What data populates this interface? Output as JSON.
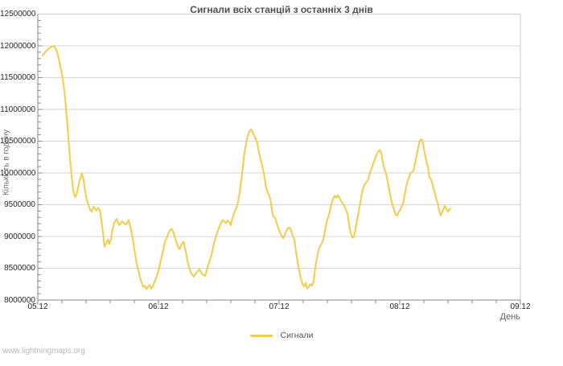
{
  "page": {
    "watermark": "www.lightningmaps.org"
  },
  "colors": {
    "series_line": "#f3cd4a",
    "gridline": "#d6d6d6",
    "plot_border": "#c9c9c9",
    "axis_line": "#8a8a8a",
    "title_text": "#4f4f4f",
    "tick_text": "#262626",
    "legend_text": "#545454",
    "watermark_text": "#b8b8b8"
  },
  "chart_data": {
    "type": "line",
    "title": "Сигнали всіх станцій з останніх 3 днів",
    "xlabel": "День",
    "ylabel": "Кількість в годину",
    "grid": "horizontal-gridlines-only",
    "legend": {
      "position": "bottom-center",
      "entries": [
        {
          "label": "Сигнали",
          "color": "#f3cd4a"
        }
      ]
    },
    "x_axis": {
      "range_days": [
        0,
        4
      ],
      "major_tick_labels": [
        "05.12",
        "06.12",
        "07.12",
        "08.12",
        "09.12"
      ],
      "minor_step_days": 0.2
    },
    "y_axis": {
      "range": [
        8000000,
        12500000
      ],
      "major_step": 500000,
      "minor_step": 100000,
      "tick_labels": [
        "8000000",
        "8500000",
        "9000000",
        "9500000",
        "10000000",
        "10500000",
        "11000000",
        "11500000",
        "12000000",
        "12500000"
      ]
    },
    "series": [
      {
        "name": "Сигнали",
        "color": "#f3cd4a",
        "points": [
          [
            0.04,
            11850000
          ],
          [
            0.06,
            11900000
          ],
          [
            0.08,
            11940000
          ],
          [
            0.1,
            11970000
          ],
          [
            0.12,
            11990000
          ],
          [
            0.133,
            12000000
          ],
          [
            0.147,
            11960000
          ],
          [
            0.16,
            11900000
          ],
          [
            0.173,
            11800000
          ],
          [
            0.193,
            11620000
          ],
          [
            0.213,
            11400000
          ],
          [
            0.227,
            11150000
          ],
          [
            0.24,
            10880000
          ],
          [
            0.253,
            10550000
          ],
          [
            0.267,
            10220000
          ],
          [
            0.28,
            9950000
          ],
          [
            0.293,
            9740000
          ],
          [
            0.307,
            9620000
          ],
          [
            0.32,
            9660000
          ],
          [
            0.333,
            9760000
          ],
          [
            0.347,
            9880000
          ],
          [
            0.36,
            9960000
          ],
          [
            0.367,
            9990000
          ],
          [
            0.38,
            9880000
          ],
          [
            0.393,
            9700000
          ],
          [
            0.407,
            9570000
          ],
          [
            0.42,
            9500000
          ],
          [
            0.433,
            9420000
          ],
          [
            0.447,
            9390000
          ],
          [
            0.46,
            9470000
          ],
          [
            0.473,
            9440000
          ],
          [
            0.487,
            9410000
          ],
          [
            0.5,
            9450000
          ],
          [
            0.513,
            9420000
          ],
          [
            0.527,
            9260000
          ],
          [
            0.54,
            9060000
          ],
          [
            0.553,
            8840000
          ],
          [
            0.567,
            8900000
          ],
          [
            0.58,
            8950000
          ],
          [
            0.593,
            8880000
          ],
          [
            0.607,
            8970000
          ],
          [
            0.62,
            9120000
          ],
          [
            0.633,
            9210000
          ],
          [
            0.653,
            9280000
          ],
          [
            0.673,
            9180000
          ],
          [
            0.687,
            9210000
          ],
          [
            0.7,
            9240000
          ],
          [
            0.72,
            9200000
          ],
          [
            0.733,
            9190000
          ],
          [
            0.753,
            9260000
          ],
          [
            0.773,
            9110000
          ],
          [
            0.787,
            8960000
          ],
          [
            0.807,
            8710000
          ],
          [
            0.82,
            8570000
          ],
          [
            0.84,
            8410000
          ],
          [
            0.853,
            8320000
          ],
          [
            0.873,
            8210000
          ],
          [
            0.887,
            8220000
          ],
          [
            0.9,
            8170000
          ],
          [
            0.913,
            8210000
          ],
          [
            0.927,
            8240000
          ],
          [
            0.94,
            8180000
          ],
          [
            0.953,
            8210000
          ],
          [
            0.973,
            8310000
          ],
          [
            0.987,
            8380000
          ],
          [
            1.007,
            8510000
          ],
          [
            1.02,
            8630000
          ],
          [
            1.04,
            8790000
          ],
          [
            1.053,
            8910000
          ],
          [
            1.073,
            9000000
          ],
          [
            1.093,
            9090000
          ],
          [
            1.107,
            9120000
          ],
          [
            1.12,
            9090000
          ],
          [
            1.14,
            8960000
          ],
          [
            1.16,
            8850000
          ],
          [
            1.173,
            8800000
          ],
          [
            1.193,
            8880000
          ],
          [
            1.207,
            8920000
          ],
          [
            1.227,
            8760000
          ],
          [
            1.24,
            8620000
          ],
          [
            1.253,
            8520000
          ],
          [
            1.267,
            8440000
          ],
          [
            1.28,
            8400000
          ],
          [
            1.293,
            8370000
          ],
          [
            1.307,
            8410000
          ],
          [
            1.327,
            8460000
          ],
          [
            1.34,
            8480000
          ],
          [
            1.353,
            8440000
          ],
          [
            1.367,
            8400000
          ],
          [
            1.387,
            8380000
          ],
          [
            1.407,
            8520000
          ],
          [
            1.427,
            8640000
          ],
          [
            1.44,
            8710000
          ],
          [
            1.46,
            8890000
          ],
          [
            1.48,
            9020000
          ],
          [
            1.5,
            9130000
          ],
          [
            1.52,
            9220000
          ],
          [
            1.533,
            9260000
          ],
          [
            1.547,
            9230000
          ],
          [
            1.56,
            9210000
          ],
          [
            1.573,
            9250000
          ],
          [
            1.587,
            9230000
          ],
          [
            1.6,
            9180000
          ],
          [
            1.613,
            9280000
          ],
          [
            1.627,
            9370000
          ],
          [
            1.647,
            9460000
          ],
          [
            1.66,
            9550000
          ],
          [
            1.673,
            9700000
          ],
          [
            1.687,
            9900000
          ],
          [
            1.7,
            10100000
          ],
          [
            1.713,
            10320000
          ],
          [
            1.727,
            10470000
          ],
          [
            1.74,
            10580000
          ],
          [
            1.753,
            10650000
          ],
          [
            1.767,
            10690000
          ],
          [
            1.78,
            10650000
          ],
          [
            1.793,
            10590000
          ],
          [
            1.807,
            10530000
          ],
          [
            1.82,
            10460000
          ],
          [
            1.833,
            10330000
          ],
          [
            1.847,
            10210000
          ],
          [
            1.86,
            10110000
          ],
          [
            1.873,
            10000000
          ],
          [
            1.887,
            9830000
          ],
          [
            1.9,
            9710000
          ],
          [
            1.913,
            9670000
          ],
          [
            1.927,
            9590000
          ],
          [
            1.94,
            9430000
          ],
          [
            1.953,
            9310000
          ],
          [
            1.967,
            9290000
          ],
          [
            1.98,
            9210000
          ],
          [
            1.993,
            9130000
          ],
          [
            2.007,
            9070000
          ],
          [
            2.02,
            9010000
          ],
          [
            2.033,
            8970000
          ],
          [
            2.047,
            9030000
          ],
          [
            2.06,
            9090000
          ],
          [
            2.073,
            9130000
          ],
          [
            2.087,
            9140000
          ],
          [
            2.1,
            9090000
          ],
          [
            2.113,
            9010000
          ],
          [
            2.127,
            8950000
          ],
          [
            2.14,
            8760000
          ],
          [
            2.153,
            8610000
          ],
          [
            2.167,
            8460000
          ],
          [
            2.18,
            8340000
          ],
          [
            2.193,
            8260000
          ],
          [
            2.207,
            8210000
          ],
          [
            2.22,
            8270000
          ],
          [
            2.233,
            8180000
          ],
          [
            2.247,
            8210000
          ],
          [
            2.26,
            8250000
          ],
          [
            2.273,
            8230000
          ],
          [
            2.287,
            8310000
          ],
          [
            2.3,
            8510000
          ],
          [
            2.313,
            8660000
          ],
          [
            2.327,
            8790000
          ],
          [
            2.34,
            8850000
          ],
          [
            2.353,
            8890000
          ],
          [
            2.367,
            8960000
          ],
          [
            2.38,
            9090000
          ],
          [
            2.393,
            9210000
          ],
          [
            2.407,
            9310000
          ],
          [
            2.42,
            9390000
          ],
          [
            2.433,
            9510000
          ],
          [
            2.447,
            9590000
          ],
          [
            2.46,
            9640000
          ],
          [
            2.473,
            9610000
          ],
          [
            2.487,
            9650000
          ],
          [
            2.5,
            9610000
          ],
          [
            2.513,
            9560000
          ],
          [
            2.533,
            9510000
          ],
          [
            2.553,
            9430000
          ],
          [
            2.567,
            9360000
          ],
          [
            2.58,
            9190000
          ],
          [
            2.593,
            9060000
          ],
          [
            2.607,
            8980000
          ],
          [
            2.62,
            9000000
          ],
          [
            2.633,
            9110000
          ],
          [
            2.647,
            9260000
          ],
          [
            2.66,
            9390000
          ],
          [
            2.673,
            9530000
          ],
          [
            2.687,
            9690000
          ],
          [
            2.7,
            9780000
          ],
          [
            2.713,
            9830000
          ],
          [
            2.727,
            9860000
          ],
          [
            2.74,
            9900000
          ],
          [
            2.753,
            10010000
          ],
          [
            2.767,
            10070000
          ],
          [
            2.78,
            10150000
          ],
          [
            2.793,
            10210000
          ],
          [
            2.807,
            10290000
          ],
          [
            2.82,
            10330000
          ],
          [
            2.833,
            10360000
          ],
          [
            2.847,
            10310000
          ],
          [
            2.86,
            10160000
          ],
          [
            2.873,
            10060000
          ],
          [
            2.887,
            9990000
          ],
          [
            2.9,
            9860000
          ],
          [
            2.913,
            9740000
          ],
          [
            2.927,
            9590000
          ],
          [
            2.94,
            9490000
          ],
          [
            2.953,
            9420000
          ],
          [
            2.967,
            9340000
          ],
          [
            2.98,
            9330000
          ],
          [
            2.993,
            9390000
          ],
          [
            3.007,
            9430000
          ],
          [
            3.02,
            9490000
          ],
          [
            3.033,
            9560000
          ],
          [
            3.053,
            9780000
          ],
          [
            3.067,
            9880000
          ],
          [
            3.087,
            9990000
          ],
          [
            3.1,
            10010000
          ],
          [
            3.113,
            10030000
          ],
          [
            3.127,
            10160000
          ],
          [
            3.14,
            10270000
          ],
          [
            3.153,
            10410000
          ],
          [
            3.167,
            10510000
          ],
          [
            3.18,
            10530000
          ],
          [
            3.193,
            10460000
          ],
          [
            3.207,
            10310000
          ],
          [
            3.22,
            10190000
          ],
          [
            3.233,
            10090000
          ],
          [
            3.247,
            9930000
          ],
          [
            3.26,
            9900000
          ],
          [
            3.273,
            9810000
          ],
          [
            3.287,
            9710000
          ],
          [
            3.3,
            9610000
          ],
          [
            3.313,
            9530000
          ],
          [
            3.327,
            9410000
          ],
          [
            3.34,
            9330000
          ],
          [
            3.353,
            9390000
          ],
          [
            3.373,
            9480000
          ],
          [
            3.387,
            9430000
          ],
          [
            3.4,
            9390000
          ],
          [
            3.413,
            9430000
          ],
          [
            3.42,
            9440000
          ]
        ]
      }
    ]
  }
}
